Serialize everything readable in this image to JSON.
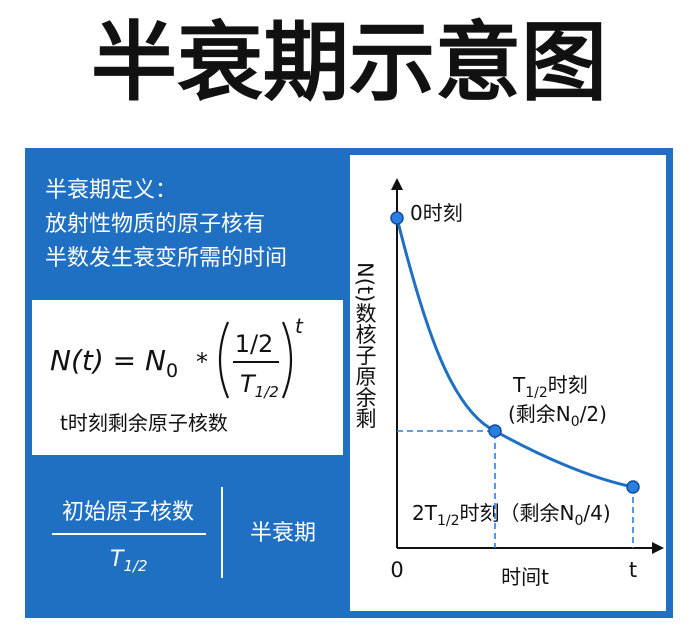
{
  "title": "半衰期示意图",
  "definition": {
    "heading": "半衰期定义：",
    "lines": [
      "放射性物质的原子核有",
      "半数发生衰变所需的时间"
    ]
  },
  "formula": {
    "lhs": "N(t) = N",
    "lhs_sub": "0",
    "operator": "*",
    "numerator": "1/2",
    "denominator": "T",
    "denominator_sub": "1/2",
    "exponent": "t",
    "caption": "t时刻剩余原子核数"
  },
  "ratio": {
    "numerator": "初始原子核数",
    "denominator": "T",
    "denominator_sub": "1/2",
    "label": "半衰期"
  },
  "graph": {
    "y_axis_label": "N(t)数核子原余剩",
    "x_axis_label": "时间t",
    "origin": "0",
    "x_end": "t",
    "start_label": "0时刻",
    "half_label": {
      "main": "T",
      "sub": "1/2",
      "rest": "时刻"
    },
    "half_note": {
      "main": "(剩余N",
      "sub": "0",
      "rest": "/2)"
    },
    "quarter_label": {
      "main": "2T",
      "sub": "1/2",
      "mid": "时刻（剩余N",
      "sub2": "0",
      "rest": "/4)"
    }
  }
}
